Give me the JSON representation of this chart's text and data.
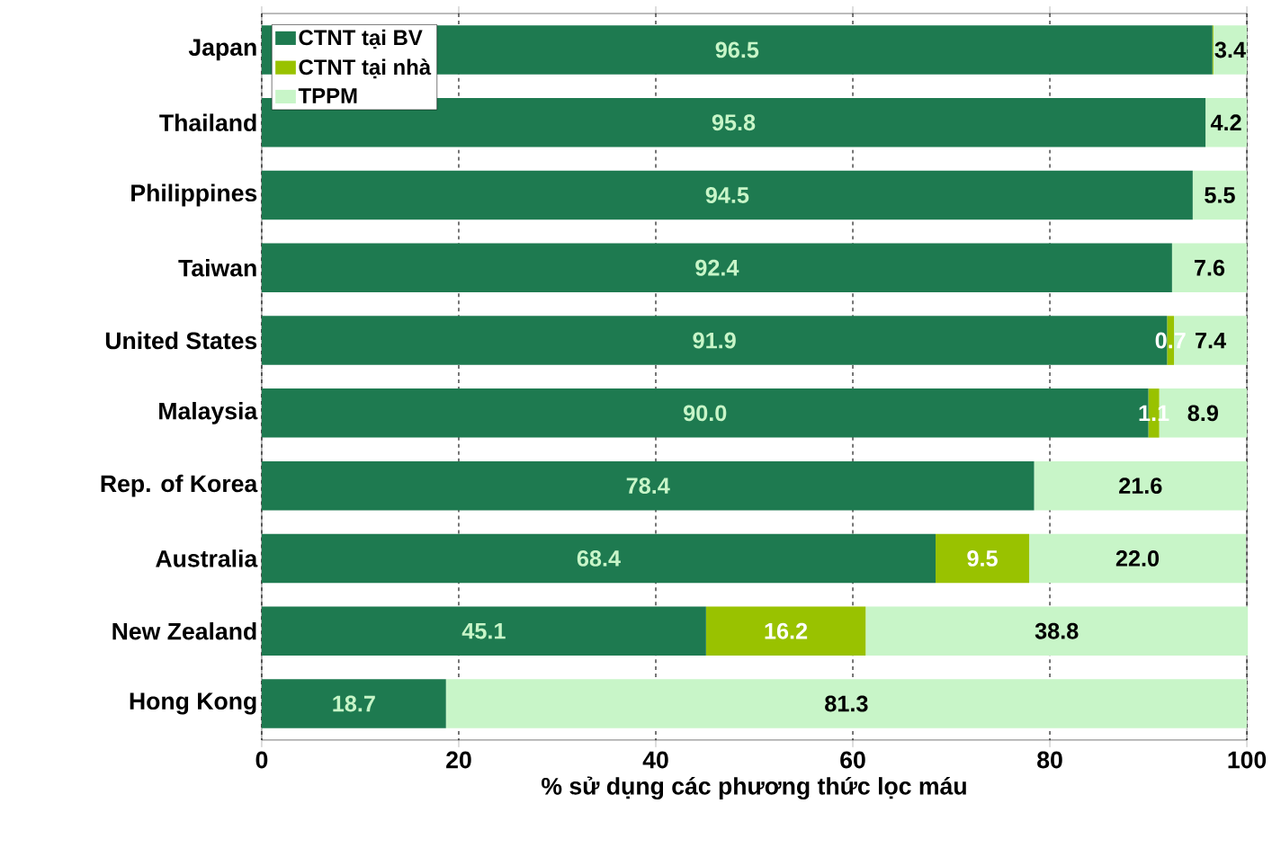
{
  "chart_data": {
    "type": "bar",
    "orientation": "horizontal",
    "stacked": true,
    "xlabel": "% sử dụng các phương thức lọc máu",
    "categories": [
      "Japan",
      "Thailand",
      "Philippines",
      "Taiwan",
      "United States",
      "Malaysia",
      "Rep. of Korea",
      "Australia",
      "New Zealand",
      "Hong Kong"
    ],
    "series": [
      {
        "name": "CTNT tại BV",
        "color": "#1e7a50",
        "values": [
          96.5,
          95.8,
          94.5,
          92.4,
          91.9,
          90.0,
          78.4,
          68.4,
          45.1,
          18.7
        ],
        "value_labels": [
          "96.5",
          "95.8",
          "94.5",
          "92.4",
          "91.9",
          "90.0",
          "78.4",
          "68.4",
          "45.1",
          "18.7"
        ]
      },
      {
        "name": "CTNT tại nhà",
        "color": "#99c200",
        "values": [
          0.1,
          0,
          0,
          0,
          0.7,
          1.1,
          0,
          9.5,
          16.2,
          0
        ],
        "value_labels": [
          null,
          null,
          null,
          null,
          "0.7",
          "1.1",
          null,
          "9.5",
          "16.2",
          null
        ]
      },
      {
        "name": "TPPM",
        "color": "#c8f5c8",
        "values": [
          3.4,
          4.2,
          5.5,
          7.6,
          7.4,
          8.9,
          21.6,
          22.0,
          38.8,
          81.3
        ],
        "value_labels": [
          "3.4",
          "4.2",
          "5.5",
          "7.6",
          "7.4",
          "8.9",
          "21.6",
          "22.0",
          "38.8",
          "81.3"
        ]
      }
    ],
    "xlim": [
      0,
      100
    ],
    "xticks": [
      0,
      20,
      40,
      60,
      80,
      100
    ],
    "grid": "x",
    "legend": "top left"
  }
}
